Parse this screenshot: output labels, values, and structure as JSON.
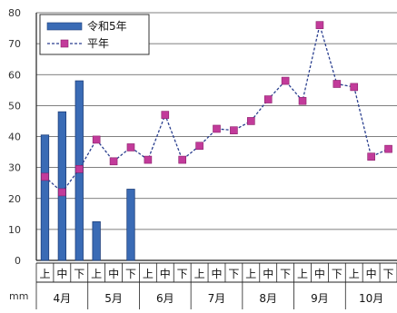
{
  "chart_data": {
    "type": "bar+line",
    "ylim": [
      0,
      80
    ],
    "yticks": [
      0,
      10,
      20,
      30,
      40,
      50,
      60,
      70,
      80
    ],
    "yticks_labels": [
      "0",
      "10",
      "20",
      "30",
      "40",
      "50",
      "60",
      "70",
      "80"
    ],
    "y_unit": "mm",
    "categories": [
      "上",
      "中",
      "下",
      "上",
      "中",
      "下",
      "上",
      "中",
      "下",
      "上",
      "中",
      "下",
      "上",
      "中",
      "下",
      "上",
      "中",
      "下",
      "上",
      "中",
      "下"
    ],
    "month_groups": [
      {
        "label": "4月",
        "span": 3
      },
      {
        "label": "5月",
        "span": 3
      },
      {
        "label": "6月",
        "span": 3
      },
      {
        "label": "7月",
        "span": 3
      },
      {
        "label": "8月",
        "span": 3
      },
      {
        "label": "9月",
        "span": 3
      },
      {
        "label": "10月",
        "span": 3
      }
    ],
    "series": [
      {
        "name": "令和5年",
        "type": "bar",
        "color": "#3a6bb5",
        "values": [
          40.5,
          48,
          58,
          12.5,
          null,
          23,
          null,
          null,
          null,
          null,
          null,
          null,
          null,
          null,
          null,
          null,
          null,
          null,
          null,
          null,
          null
        ]
      },
      {
        "name": "平年",
        "type": "line",
        "color": "#c23b9a",
        "line_color": "#2a3f8f",
        "values": [
          27,
          22,
          29.5,
          39,
          32,
          36.5,
          32.5,
          47,
          32.5,
          37,
          42.5,
          42,
          45,
          52,
          58,
          51.5,
          76,
          57,
          56,
          33.5,
          36
        ]
      }
    ],
    "legend": {
      "position": "top-left",
      "entries": [
        "令和5年",
        "平年"
      ]
    },
    "grid": true
  }
}
